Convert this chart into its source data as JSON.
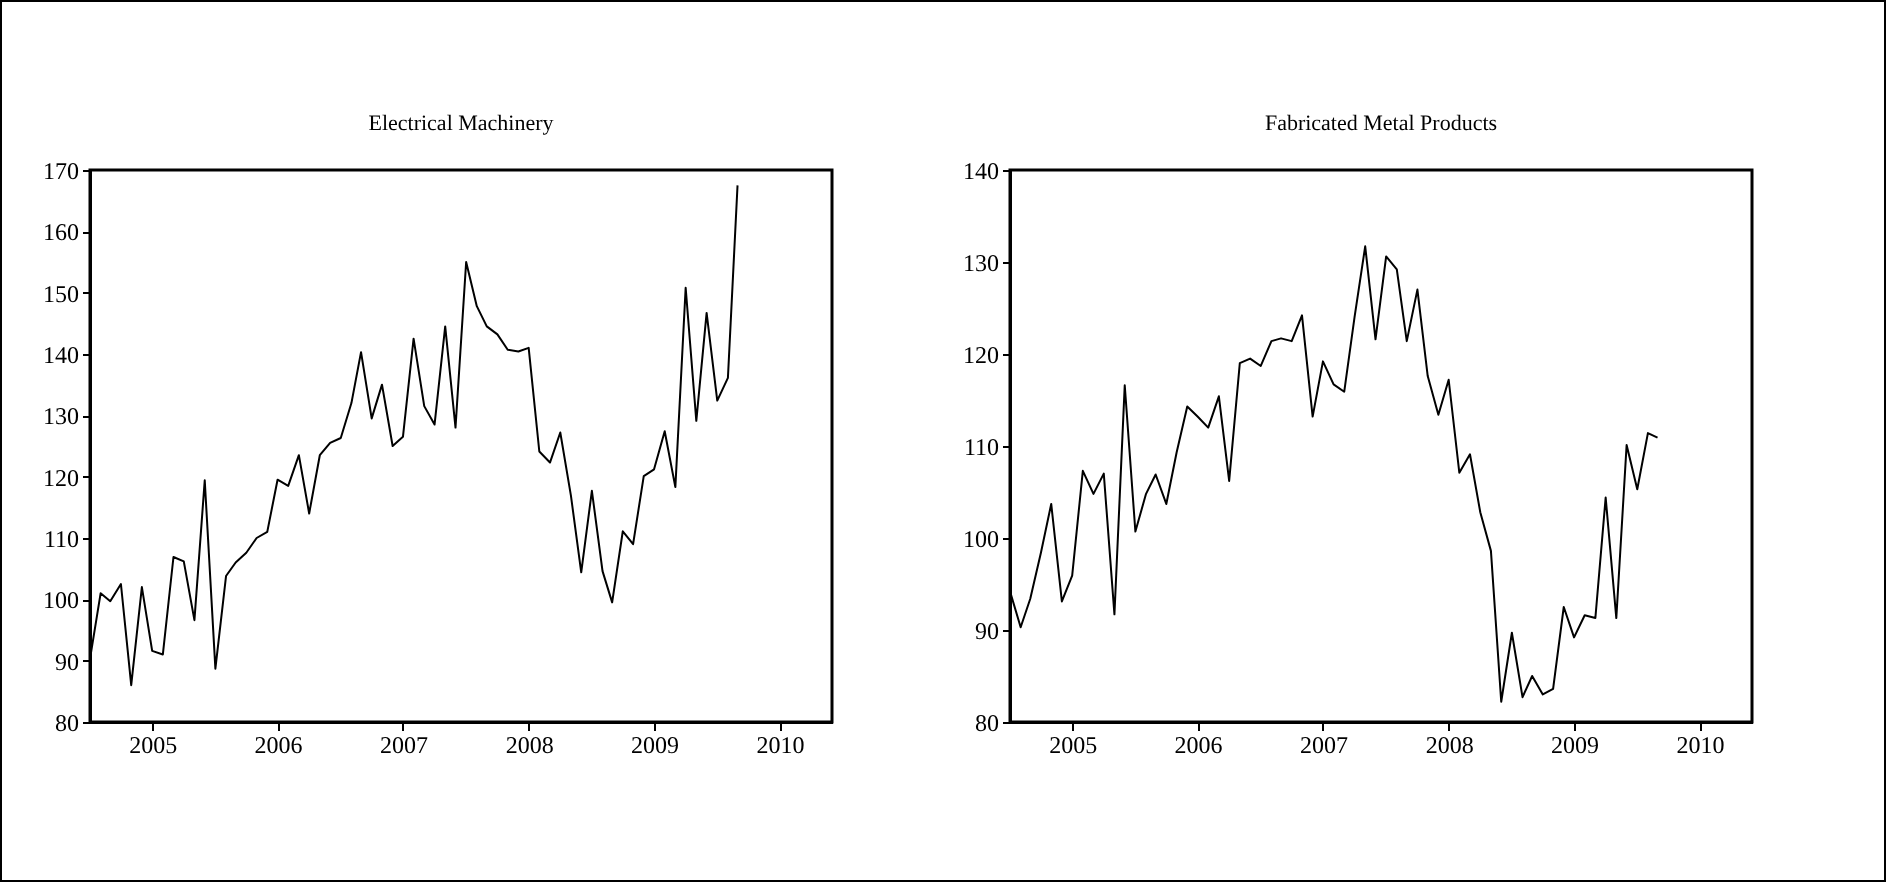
{
  "chart_data": [
    {
      "type": "line",
      "title": "Electrical Machinery",
      "x": [
        "2005-01",
        "2005-02",
        "2005-03",
        "2005-04",
        "2005-05",
        "2005-06",
        "2005-07",
        "2005-08",
        "2005-09",
        "2005-10",
        "2005-11",
        "2005-12",
        "2006-01",
        "2006-02",
        "2006-03",
        "2006-04",
        "2006-05",
        "2006-06",
        "2006-07",
        "2006-08",
        "2006-09",
        "2006-10",
        "2006-11",
        "2006-12",
        "2007-01",
        "2007-02",
        "2007-03",
        "2007-04",
        "2007-05",
        "2007-06",
        "2007-07",
        "2007-08",
        "2007-09",
        "2007-10",
        "2007-11",
        "2007-12",
        "2008-01",
        "2008-02",
        "2008-03",
        "2008-04",
        "2008-05",
        "2008-06",
        "2008-07",
        "2008-08",
        "2008-09",
        "2008-10",
        "2008-11",
        "2008-12",
        "2009-01",
        "2009-02",
        "2009-03",
        "2009-04",
        "2009-05",
        "2009-06",
        "2009-07",
        "2009-08",
        "2009-09",
        "2009-10",
        "2009-11",
        "2009-12",
        "2010-01",
        "2010-02",
        "2010-03"
      ],
      "series": [
        {
          "color": "#000000",
          "values": [
            90.3,
            101,
            99.7,
            102.5,
            86,
            102,
            91.6,
            91,
            106.9,
            106.2,
            96.6,
            119.4,
            88.7,
            103.8,
            106,
            107.6,
            110,
            111,
            119.5,
            118.5,
            123.5,
            114,
            123.5,
            125.5,
            126.3,
            132,
            140.3,
            129.5,
            135,
            125,
            126.5,
            142.5,
            131.5,
            128.5,
            144.5,
            128,
            155,
            147.8,
            144.5,
            143.2,
            140.7,
            140.4,
            141,
            124.1,
            122.3,
            127.2,
            116.9,
            104.4,
            117.7,
            104.6,
            99.5,
            111.1,
            109,
            120.1,
            121.2,
            127.4,
            118.3,
            150.8,
            129.1,
            146.7,
            132.4,
            136.1,
            167.5
          ]
        }
      ],
      "xlim": [
        "2005-01",
        "2010-12"
      ],
      "xticks": [
        {
          "value": "2005-07",
          "label": "2005"
        },
        {
          "value": "2006-07",
          "label": "2006"
        },
        {
          "value": "2007-07",
          "label": "2007"
        },
        {
          "value": "2008-07",
          "label": "2008"
        },
        {
          "value": "2009-07",
          "label": "2009"
        },
        {
          "value": "2010-07",
          "label": "2010"
        }
      ],
      "ylim": [
        80,
        170
      ],
      "yticks": [
        80,
        90,
        100,
        110,
        120,
        130,
        140,
        150,
        160,
        170
      ],
      "grid": false
    },
    {
      "type": "line",
      "title": "Fabricated Metal Products",
      "x": [
        "2005-01",
        "2005-02",
        "2005-03",
        "2005-04",
        "2005-05",
        "2005-06",
        "2005-07",
        "2005-08",
        "2005-09",
        "2005-10",
        "2005-11",
        "2005-12",
        "2006-01",
        "2006-02",
        "2006-03",
        "2006-04",
        "2006-05",
        "2006-06",
        "2006-07",
        "2006-08",
        "2006-09",
        "2006-10",
        "2006-11",
        "2006-12",
        "2007-01",
        "2007-02",
        "2007-03",
        "2007-04",
        "2007-05",
        "2007-06",
        "2007-07",
        "2007-08",
        "2007-09",
        "2007-10",
        "2007-11",
        "2007-12",
        "2008-01",
        "2008-02",
        "2008-03",
        "2008-04",
        "2008-05",
        "2008-06",
        "2008-07",
        "2008-08",
        "2008-09",
        "2008-10",
        "2008-11",
        "2008-12",
        "2009-01",
        "2009-02",
        "2009-03",
        "2009-04",
        "2009-05",
        "2009-06",
        "2009-07",
        "2009-08",
        "2009-09",
        "2009-10",
        "2009-11",
        "2009-12",
        "2010-01",
        "2010-02",
        "2010-03"
      ],
      "series": [
        {
          "color": "#000000",
          "values": [
            94.2,
            90.3,
            93.4,
            98.4,
            103.7,
            93.1,
            95.9,
            107.3,
            104.8,
            107,
            91.7,
            116.6,
            100.7,
            104.8,
            106.9,
            103.7,
            109.3,
            114.3,
            113.2,
            112,
            115.4,
            106.2,
            119,
            119.5,
            118.7,
            121.4,
            121.7,
            121.4,
            124.2,
            113.2,
            119.2,
            116.7,
            115.9,
            124,
            131.7,
            121.6,
            130.6,
            129.2,
            121.4,
            127,
            117.6,
            113.4,
            117.2,
            107.1,
            109.1,
            102.8,
            98.6,
            82.2,
            89.7,
            82.7,
            85,
            83,
            83.6,
            92.5,
            89.2,
            91.6,
            91.3,
            104.4,
            91.3,
            110.1,
            105.3,
            111.4,
            110.9
          ]
        }
      ],
      "xlim": [
        "2005-01",
        "2010-12"
      ],
      "xticks": [
        {
          "value": "2005-07",
          "label": "2005"
        },
        {
          "value": "2006-07",
          "label": "2006"
        },
        {
          "value": "2007-07",
          "label": "2007"
        },
        {
          "value": "2008-07",
          "label": "2008"
        },
        {
          "value": "2009-07",
          "label": "2009"
        },
        {
          "value": "2010-07",
          "label": "2010"
        }
      ],
      "ylim": [
        80,
        140
      ],
      "yticks": [
        80,
        90,
        100,
        110,
        120,
        130,
        140
      ],
      "grid": false
    }
  ]
}
